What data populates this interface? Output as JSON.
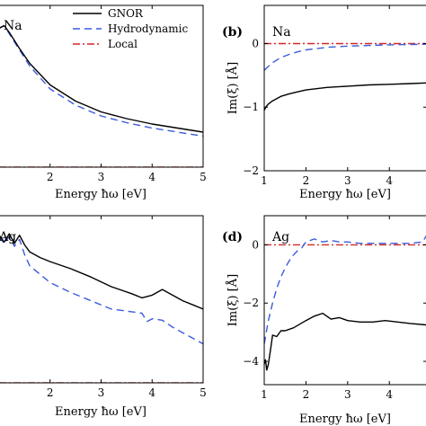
{
  "colors": {
    "gnor": "#000000",
    "hydro": "#3b5bdb",
    "local": "#d62728",
    "axis": "#000000"
  },
  "legend": {
    "gnor": "GNOR",
    "hydro": "Hydrodynamic",
    "local": "Local"
  },
  "chart_data": [
    {
      "panel": "a",
      "type": "line",
      "annotation": "Na",
      "xlabel": "Energy ħω [eV]",
      "ylabel": "",
      "xlim": [
        1,
        5
      ],
      "ylim": [
        0,
        6
      ],
      "xticks": [
        2,
        3,
        4,
        5
      ],
      "yticks": [],
      "series": [
        {
          "name": "GNOR",
          "x": [
            1.0,
            1.1,
            1.2,
            1.4,
            1.6,
            2.0,
            2.5,
            3.0,
            3.5,
            4.0,
            4.5,
            5.0
          ],
          "y": [
            5.15,
            5.25,
            5.0,
            4.4,
            3.85,
            3.05,
            2.45,
            2.05,
            1.8,
            1.6,
            1.45,
            1.3
          ]
        },
        {
          "name": "Hydrodynamic",
          "x": [
            1.0,
            1.1,
            1.2,
            1.4,
            1.6,
            2.0,
            2.5,
            3.0,
            3.5,
            4.0,
            4.5,
            5.0
          ],
          "y": [
            5.15,
            5.25,
            4.95,
            4.35,
            3.75,
            2.9,
            2.3,
            1.9,
            1.65,
            1.45,
            1.3,
            1.15
          ]
        },
        {
          "name": "Local",
          "x": [
            1.0,
            5.0
          ],
          "y": [
            0.0,
            0.0
          ]
        }
      ]
    },
    {
      "panel": "b",
      "type": "line",
      "label": "(b)",
      "annotation": "Na",
      "xlabel": "Energy ħω [eV]",
      "ylabel": "Im(ξ) [Å]",
      "xlim": [
        1,
        4.9
      ],
      "ylim": [
        -2,
        0.6
      ],
      "xticks": [
        1,
        2,
        3,
        4
      ],
      "xtick_labels": [
        "1",
        "2",
        "3",
        "4"
      ],
      "yticks": [
        0,
        -1,
        -2
      ],
      "ytick_labels": [
        "0",
        "−1",
        "−2"
      ],
      "series": [
        {
          "name": "GNOR",
          "x": [
            1.0,
            1.05,
            1.1,
            1.2,
            1.4,
            1.6,
            1.8,
            2.0,
            2.5,
            3.0,
            3.5,
            4.0,
            4.5,
            4.9
          ],
          "y": [
            -1.05,
            -0.99,
            -0.95,
            -0.9,
            -0.83,
            -0.79,
            -0.76,
            -0.73,
            -0.69,
            -0.67,
            -0.65,
            -0.64,
            -0.63,
            -0.62
          ]
        },
        {
          "name": "Hydrodynamic",
          "x": [
            1.0,
            1.1,
            1.2,
            1.4,
            1.6,
            1.8,
            2.0,
            2.5,
            3.0,
            3.5,
            4.0,
            4.5,
            4.9
          ],
          "y": [
            -0.42,
            -0.36,
            -0.3,
            -0.22,
            -0.17,
            -0.13,
            -0.1,
            -0.06,
            -0.04,
            -0.03,
            -0.02,
            -0.015,
            -0.01
          ]
        },
        {
          "name": "Local",
          "x": [
            1.0,
            4.9
          ],
          "y": [
            0.0,
            0.0
          ]
        }
      ]
    },
    {
      "panel": "c",
      "type": "line",
      "annotation": "Ag",
      "xlabel": "Energy ħω [eV]",
      "ylabel": "",
      "xlim": [
        1,
        5
      ],
      "ylim": [
        0,
        6
      ],
      "xticks": [
        2,
        3,
        4,
        5
      ],
      "yticks": [],
      "series": [
        {
          "name": "GNOR",
          "x": [
            1.0,
            1.1,
            1.2,
            1.3,
            1.4,
            1.5,
            1.6,
            1.8,
            2.0,
            2.4,
            2.8,
            3.2,
            3.6,
            3.8,
            4.0,
            4.2,
            4.4,
            4.6,
            4.8,
            5.0
          ],
          "y": [
            5.3,
            5.05,
            5.35,
            5.0,
            5.3,
            4.95,
            4.7,
            4.5,
            4.35,
            4.1,
            3.8,
            3.45,
            3.2,
            3.05,
            3.15,
            3.35,
            3.15,
            2.95,
            2.8,
            2.65
          ]
        },
        {
          "name": "Hydrodynamic",
          "x": [
            1.0,
            1.1,
            1.2,
            1.3,
            1.4,
            1.5,
            1.6,
            1.8,
            2.0,
            2.4,
            2.8,
            3.2,
            3.6,
            3.8,
            3.9,
            4.0,
            4.2,
            4.4,
            4.6,
            4.8,
            5.0
          ],
          "y": [
            5.25,
            5.0,
            5.25,
            4.9,
            5.15,
            4.6,
            4.2,
            3.9,
            3.6,
            3.25,
            2.95,
            2.65,
            2.55,
            2.5,
            2.2,
            2.3,
            2.25,
            2.0,
            1.8,
            1.6,
            1.4
          ]
        },
        {
          "name": "Local",
          "x": [
            1.0,
            5.0
          ],
          "y": [
            0.0,
            0.0
          ]
        }
      ]
    },
    {
      "panel": "d",
      "type": "line",
      "label": "(d)",
      "annotation": "Ag",
      "xlabel": "Energy ħω [eV]",
      "ylabel": "Im(ξ) [Å]",
      "xlim": [
        1,
        4.9
      ],
      "ylim": [
        -4.8,
        1.0
      ],
      "xticks": [
        1,
        2,
        3,
        4
      ],
      "xtick_labels": [
        "1",
        "2",
        "3",
        "4"
      ],
      "yticks": [
        0,
        -2,
        -4
      ],
      "ytick_labels": [
        "0",
        "−2",
        "−4"
      ],
      "series": [
        {
          "name": "GNOR",
          "x": [
            1.0,
            1.03,
            1.06,
            1.1,
            1.15,
            1.2,
            1.3,
            1.4,
            1.5,
            1.7,
            2.0,
            2.2,
            2.4,
            2.6,
            2.8,
            3.0,
            3.3,
            3.6,
            3.9,
            4.2,
            4.5,
            4.9
          ],
          "y": [
            -4.1,
            -3.95,
            -4.3,
            -4.1,
            -3.6,
            -3.1,
            -3.15,
            -2.95,
            -2.95,
            -2.85,
            -2.6,
            -2.45,
            -2.35,
            -2.55,
            -2.5,
            -2.6,
            -2.65,
            -2.65,
            -2.6,
            -2.65,
            -2.7,
            -2.75
          ]
        },
        {
          "name": "Hydrodynamic",
          "x": [
            1.0,
            1.1,
            1.2,
            1.3,
            1.4,
            1.5,
            1.6,
            1.7,
            1.8,
            1.9,
            2.0,
            2.2,
            2.4,
            2.6,
            2.8,
            3.0,
            3.3,
            3.6,
            3.9,
            4.2,
            4.5,
            4.8,
            4.9
          ],
          "y": [
            -3.4,
            -2.6,
            -2.0,
            -1.5,
            -1.1,
            -0.8,
            -0.55,
            -0.35,
            -0.2,
            -0.1,
            0.1,
            0.2,
            0.1,
            0.15,
            0.1,
            0.1,
            0.05,
            0.05,
            0.05,
            0.05,
            0.05,
            0.1,
            0.35
          ]
        },
        {
          "name": "Local",
          "x": [
            1.0,
            4.9
          ],
          "y": [
            0.0,
            0.0
          ]
        }
      ]
    }
  ]
}
